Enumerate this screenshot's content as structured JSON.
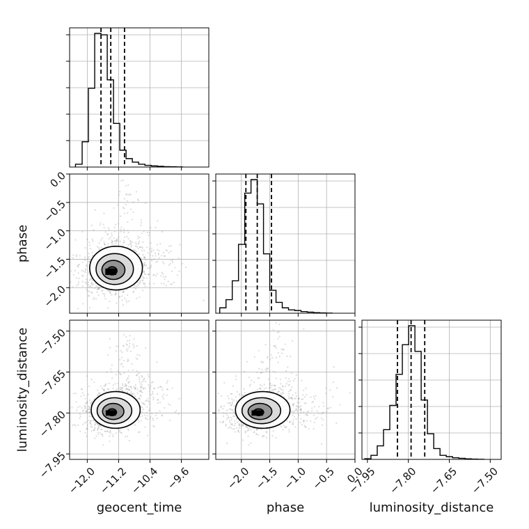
{
  "chart_data": {
    "type": "corner",
    "parameters": [
      "geocent_time",
      "phase",
      "luminosity_distance"
    ],
    "grid": true,
    "ranges": {
      "geocent_time": [
        -12.45,
        -8.9
      ],
      "phase": [
        -2.45,
        0.0
      ],
      "luminosity_distance": [
        -7.97,
        -7.46
      ]
    },
    "ticks": {
      "geocent_time": {
        "values": [
          -12.0,
          -11.2,
          -10.4,
          -9.6
        ],
        "labels": [
          "−12.0",
          "−11.2",
          "−10.4",
          "−9.6"
        ]
      },
      "phase": {
        "values": [
          -2.0,
          -1.5,
          -1.0,
          -0.5,
          0.0
        ],
        "labels": [
          "−2.0",
          "−1.5",
          "−1.0",
          "−0.5",
          "0.0"
        ]
      },
      "luminosity_distance": {
        "values": [
          -7.95,
          -7.8,
          -7.65,
          -7.5
        ],
        "labels": [
          "−7.95",
          "−7.80",
          "−7.65",
          "−7.50"
        ]
      }
    },
    "histograms": {
      "geocent_time": {
        "bin_edges": [
          -12.3,
          -12.13,
          -11.97,
          -11.81,
          -11.65,
          -11.49,
          -11.33,
          -11.17,
          -11.01,
          -10.85,
          -10.69,
          -10.53,
          -10.37,
          -10.21,
          -10.05,
          -9.89,
          -9.73,
          -9.57
        ],
        "counts": [
          2,
          18,
          56,
          95,
          94,
          62,
          31,
          12,
          6,
          3.5,
          2,
          1.2,
          0.8,
          0.5,
          0.3,
          0.2,
          0.1
        ],
        "quantiles": [
          -11.65,
          -11.4,
          -11.05
        ]
      },
      "phase": {
        "bin_edges": [
          -2.38,
          -2.27,
          -2.16,
          -2.05,
          -1.94,
          -1.83,
          -1.72,
          -1.61,
          -1.5,
          -1.39,
          -1.28,
          -1.17,
          -1.06,
          -0.95,
          -0.84,
          -0.73,
          -0.62,
          -0.51,
          -0.4
        ],
        "counts": [
          4,
          10,
          24,
          51,
          89,
          99,
          81,
          44,
          17,
          8,
          4,
          2.5,
          2,
          1.2,
          0.8,
          0.4,
          0.2,
          0.1
        ],
        "quantiles": [
          -1.92,
          -1.72,
          -1.47
        ]
      },
      "luminosity_distance": {
        "bin_edges": [
          -7.96,
          -7.937,
          -7.914,
          -7.891,
          -7.868,
          -7.845,
          -7.822,
          -7.799,
          -7.776,
          -7.753,
          -7.73,
          -7.707,
          -7.684,
          -7.661,
          -7.638,
          -7.615,
          -7.592,
          -7.569,
          -7.546,
          -7.523
        ],
        "counts": [
          0.5,
          3,
          10,
          22,
          40,
          63,
          85,
          99,
          80,
          44,
          19,
          8,
          3,
          2,
          1.2,
          0.8,
          0.4,
          0.2,
          0.1
        ],
        "quantiles": [
          -7.84,
          -7.79,
          -7.74
        ]
      }
    },
    "scatter_panels": [
      {
        "x": "geocent_time",
        "y": "phase",
        "center": [
          -11.4,
          -1.72
        ],
        "spread": [
          0.28,
          0.16
        ],
        "tail": [
          [
            -11.2,
            -1.5
          ],
          [
            -10.6,
            -1.6
          ],
          [
            -10.0,
            -1.65
          ],
          [
            -11.3,
            -0.9
          ],
          [
            -11.0,
            -0.4
          ]
        ]
      },
      {
        "x": "geocent_time",
        "y": "luminosity_distance",
        "center": [
          -11.4,
          -7.8
        ],
        "spread": [
          0.26,
          0.028
        ],
        "tail": [
          [
            -11.1,
            -7.74
          ],
          [
            -10.8,
            -7.7
          ],
          [
            -10.2,
            -7.72
          ],
          [
            -11.2,
            -7.6
          ],
          [
            -10.9,
            -7.55
          ]
        ]
      },
      {
        "x": "phase",
        "y": "luminosity_distance",
        "center": [
          -1.72,
          -7.8
        ],
        "spread": [
          0.2,
          0.028
        ],
        "tail": [
          [
            -1.4,
            -7.78
          ],
          [
            -1.0,
            -7.78
          ],
          [
            -0.6,
            -7.8
          ],
          [
            -1.6,
            -7.62
          ],
          [
            -1.3,
            -7.55
          ]
        ]
      }
    ]
  }
}
